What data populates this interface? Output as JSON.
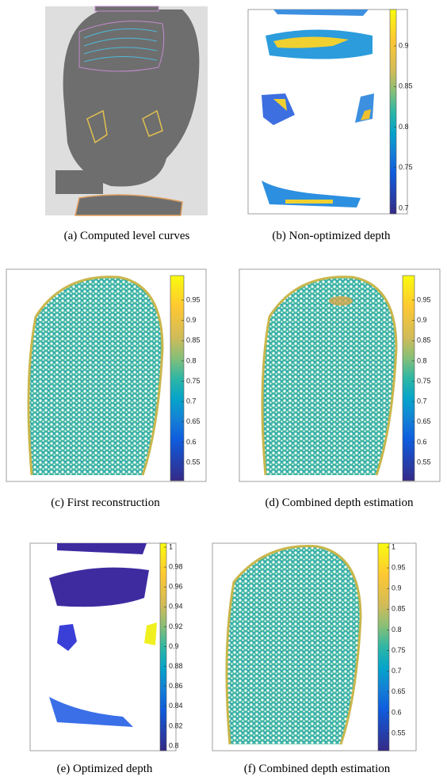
{
  "panels": [
    {
      "caption": "(a) Computed level curves"
    },
    {
      "caption": "(b) Non-optimized depth",
      "colorbar_ticks": [
        "0.9",
        "0.85",
        "0.8",
        "0.75",
        "0.7"
      ]
    },
    {
      "caption": "(c) First reconstruction",
      "colorbar_ticks": [
        "0.95",
        "0.9",
        "0.85",
        "0.8",
        "0.75",
        "0.7",
        "0.65",
        "0.6",
        "0.55"
      ]
    },
    {
      "caption": "(d) Combined depth estimation",
      "colorbar_ticks": [
        "0.95",
        "0.9",
        "0.85",
        "0.8",
        "0.75",
        "0.7",
        "0.65",
        "0.6",
        "0.55"
      ]
    },
    {
      "caption": "(e) Optimized depth",
      "colorbar_ticks": [
        "1",
        "0.98",
        "0.96",
        "0.94",
        "0.92",
        "0.9",
        "0.88",
        "0.86",
        "0.84",
        "0.82",
        "0.8"
      ]
    },
    {
      "caption": "(f) Combined depth estimation",
      "colorbar_ticks": [
        "1",
        "0.95",
        "0.9",
        "0.85",
        "0.8",
        "0.75",
        "0.7",
        "0.65",
        "0.6",
        "0.55"
      ]
    }
  ]
}
